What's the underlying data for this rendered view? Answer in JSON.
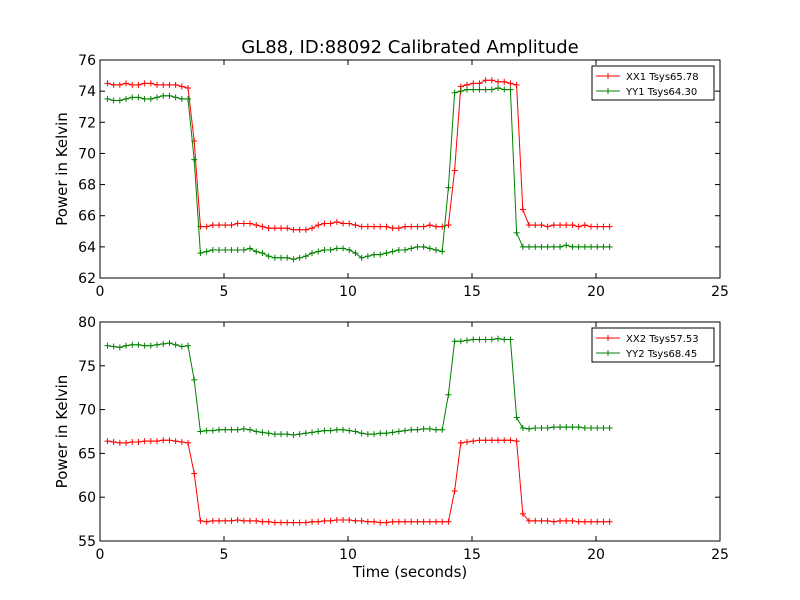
{
  "title": "GL88, ID:88092 Calibrated Amplitude",
  "chart_data": [
    {
      "type": "line",
      "ylabel": "Power in Kelvin",
      "xlabel": "",
      "xlim": [
        0,
        25
      ],
      "ylim": [
        62,
        76
      ],
      "xticks": [
        "0",
        "5",
        "10",
        "15",
        "20",
        "25"
      ],
      "yticks": [
        "62",
        "64",
        "66",
        "68",
        "70",
        "72",
        "74",
        "76"
      ],
      "legend_position": "top-right",
      "series": [
        {
          "name": "XX1 Tsys65.78",
          "color": "#ff0000",
          "x": [
            0.3,
            0.55,
            0.8,
            1.05,
            1.3,
            1.55,
            1.8,
            2.05,
            2.3,
            2.55,
            2.8,
            3.05,
            3.3,
            3.55,
            3.8,
            4.05,
            4.3,
            4.55,
            4.8,
            5.05,
            5.3,
            5.55,
            5.8,
            6.05,
            6.3,
            6.55,
            6.8,
            7.05,
            7.3,
            7.55,
            7.8,
            8.05,
            8.3,
            8.55,
            8.8,
            9.05,
            9.3,
            9.55,
            9.8,
            10.05,
            10.3,
            10.55,
            10.8,
            11.05,
            11.3,
            11.55,
            11.8,
            12.05,
            12.3,
            12.55,
            12.8,
            13.05,
            13.3,
            13.55,
            13.8,
            14.05,
            14.3,
            14.55,
            14.8,
            15.05,
            15.3,
            15.55,
            15.8,
            16.05,
            16.3,
            16.55,
            16.8,
            17.05,
            17.3,
            17.55,
            17.8,
            18.05,
            18.3,
            18.55,
            18.8,
            19.05,
            19.3,
            19.55,
            19.8,
            20.05,
            20.3,
            20.55
          ],
          "y": [
            74.5,
            74.4,
            74.4,
            74.5,
            74.4,
            74.4,
            74.5,
            74.5,
            74.4,
            74.4,
            74.4,
            74.4,
            74.3,
            74.2,
            70.8,
            65.3,
            65.3,
            65.4,
            65.4,
            65.4,
            65.4,
            65.5,
            65.5,
            65.5,
            65.4,
            65.3,
            65.2,
            65.2,
            65.2,
            65.2,
            65.1,
            65.1,
            65.1,
            65.2,
            65.4,
            65.5,
            65.5,
            65.6,
            65.5,
            65.5,
            65.4,
            65.3,
            65.3,
            65.3,
            65.3,
            65.3,
            65.2,
            65.2,
            65.3,
            65.3,
            65.3,
            65.3,
            65.4,
            65.3,
            65.3,
            65.4,
            68.9,
            74.3,
            74.4,
            74.5,
            74.5,
            74.7,
            74.7,
            74.6,
            74.6,
            74.5,
            74.4,
            66.4,
            65.4,
            65.4,
            65.4,
            65.3,
            65.4,
            65.4,
            65.4,
            65.4,
            65.3,
            65.4,
            65.3,
            65.3,
            65.3,
            65.3
          ]
        },
        {
          "name": "YY1 Tsys64.30",
          "color": "#008000",
          "x": [
            0.3,
            0.55,
            0.8,
            1.05,
            1.3,
            1.55,
            1.8,
            2.05,
            2.3,
            2.55,
            2.8,
            3.05,
            3.3,
            3.55,
            3.8,
            4.05,
            4.3,
            4.55,
            4.8,
            5.05,
            5.3,
            5.55,
            5.8,
            6.05,
            6.3,
            6.55,
            6.8,
            7.05,
            7.3,
            7.55,
            7.8,
            8.05,
            8.3,
            8.55,
            8.8,
            9.05,
            9.3,
            9.55,
            9.8,
            10.05,
            10.3,
            10.55,
            10.8,
            11.05,
            11.3,
            11.55,
            11.8,
            12.05,
            12.3,
            12.55,
            12.8,
            13.05,
            13.3,
            13.55,
            13.8,
            14.05,
            14.3,
            14.55,
            14.8,
            15.05,
            15.3,
            15.55,
            15.8,
            16.05,
            16.3,
            16.55,
            16.8,
            17.05,
            17.3,
            17.55,
            17.8,
            18.05,
            18.3,
            18.55,
            18.8,
            19.05,
            19.3,
            19.55,
            19.8,
            20.05,
            20.3,
            20.55
          ],
          "y": [
            73.5,
            73.4,
            73.4,
            73.5,
            73.6,
            73.6,
            73.5,
            73.5,
            73.6,
            73.7,
            73.7,
            73.6,
            73.5,
            73.5,
            69.6,
            63.6,
            63.7,
            63.8,
            63.8,
            63.8,
            63.8,
            63.8,
            63.8,
            63.9,
            63.7,
            63.6,
            63.4,
            63.3,
            63.3,
            63.3,
            63.2,
            63.3,
            63.4,
            63.6,
            63.7,
            63.8,
            63.8,
            63.9,
            63.9,
            63.8,
            63.6,
            63.3,
            63.4,
            63.5,
            63.5,
            63.6,
            63.7,
            63.8,
            63.8,
            63.9,
            64.0,
            64.0,
            63.9,
            63.8,
            63.7,
            67.8,
            73.9,
            74.0,
            74.1,
            74.1,
            74.1,
            74.1,
            74.1,
            74.2,
            74.1,
            74.1,
            64.9,
            64.0,
            64.0,
            64.0,
            64.0,
            64.0,
            64.0,
            64.0,
            64.1,
            64.0,
            64.0,
            64.0,
            64.0,
            64.0,
            64.0,
            64.0
          ]
        }
      ]
    },
    {
      "type": "line",
      "ylabel": "Power in Kelvin",
      "xlabel": "Time (seconds)",
      "xlim": [
        0,
        25
      ],
      "ylim": [
        55,
        80
      ],
      "xticks": [
        "0",
        "5",
        "10",
        "15",
        "20",
        "25"
      ],
      "yticks": [
        "55",
        "60",
        "65",
        "70",
        "75",
        "80"
      ],
      "legend_position": "top-right",
      "series": [
        {
          "name": "XX2 Tsys57.53",
          "color": "#ff0000",
          "x": [
            0.3,
            0.55,
            0.8,
            1.05,
            1.3,
            1.55,
            1.8,
            2.05,
            2.3,
            2.55,
            2.8,
            3.05,
            3.3,
            3.55,
            3.8,
            4.05,
            4.3,
            4.55,
            4.8,
            5.05,
            5.3,
            5.55,
            5.8,
            6.05,
            6.3,
            6.55,
            6.8,
            7.05,
            7.3,
            7.55,
            7.8,
            8.05,
            8.3,
            8.55,
            8.8,
            9.05,
            9.3,
            9.55,
            9.8,
            10.05,
            10.3,
            10.55,
            10.8,
            11.05,
            11.3,
            11.55,
            11.8,
            12.05,
            12.3,
            12.55,
            12.8,
            13.05,
            13.3,
            13.55,
            13.8,
            14.05,
            14.3,
            14.55,
            14.8,
            15.05,
            15.3,
            15.55,
            15.8,
            16.05,
            16.3,
            16.55,
            16.8,
            17.05,
            17.3,
            17.55,
            17.8,
            18.05,
            18.3,
            18.55,
            18.8,
            19.05,
            19.3,
            19.55,
            19.8,
            20.05,
            20.3,
            20.55
          ],
          "y": [
            66.4,
            66.3,
            66.2,
            66.2,
            66.3,
            66.3,
            66.4,
            66.4,
            66.4,
            66.5,
            66.5,
            66.4,
            66.3,
            66.2,
            62.7,
            57.3,
            57.2,
            57.3,
            57.3,
            57.3,
            57.3,
            57.4,
            57.3,
            57.3,
            57.3,
            57.2,
            57.2,
            57.1,
            57.1,
            57.1,
            57.1,
            57.1,
            57.1,
            57.2,
            57.2,
            57.3,
            57.3,
            57.4,
            57.4,
            57.4,
            57.3,
            57.3,
            57.2,
            57.2,
            57.1,
            57.1,
            57.2,
            57.2,
            57.2,
            57.2,
            57.2,
            57.2,
            57.2,
            57.2,
            57.2,
            57.2,
            60.7,
            66.2,
            66.3,
            66.4,
            66.5,
            66.5,
            66.5,
            66.5,
            66.5,
            66.5,
            66.4,
            58.1,
            57.3,
            57.3,
            57.3,
            57.3,
            57.2,
            57.3,
            57.3,
            57.3,
            57.2,
            57.2,
            57.2,
            57.2,
            57.2,
            57.2
          ]
        },
        {
          "name": "YY2 Tsys68.45",
          "color": "#008000",
          "x": [
            0.3,
            0.55,
            0.8,
            1.05,
            1.3,
            1.55,
            1.8,
            2.05,
            2.3,
            2.55,
            2.8,
            3.05,
            3.3,
            3.55,
            3.8,
            4.05,
            4.3,
            4.55,
            4.8,
            5.05,
            5.3,
            5.55,
            5.8,
            6.05,
            6.3,
            6.55,
            6.8,
            7.05,
            7.3,
            7.55,
            7.8,
            8.05,
            8.3,
            8.55,
            8.8,
            9.05,
            9.3,
            9.55,
            9.8,
            10.05,
            10.3,
            10.55,
            10.8,
            11.05,
            11.3,
            11.55,
            11.8,
            12.05,
            12.3,
            12.55,
            12.8,
            13.05,
            13.3,
            13.55,
            13.8,
            14.05,
            14.3,
            14.55,
            14.8,
            15.05,
            15.3,
            15.55,
            15.8,
            16.05,
            16.3,
            16.55,
            16.8,
            17.05,
            17.3,
            17.55,
            17.8,
            18.05,
            18.3,
            18.55,
            18.8,
            19.05,
            19.3,
            19.55,
            19.8,
            20.05,
            20.3,
            20.55
          ],
          "y": [
            77.3,
            77.2,
            77.1,
            77.3,
            77.4,
            77.4,
            77.3,
            77.3,
            77.4,
            77.5,
            77.6,
            77.4,
            77.2,
            77.3,
            73.4,
            67.5,
            67.6,
            67.6,
            67.7,
            67.7,
            67.7,
            67.7,
            67.8,
            67.7,
            67.5,
            67.4,
            67.3,
            67.2,
            67.2,
            67.2,
            67.1,
            67.2,
            67.3,
            67.4,
            67.5,
            67.6,
            67.6,
            67.7,
            67.7,
            67.6,
            67.5,
            67.3,
            67.2,
            67.2,
            67.3,
            67.3,
            67.4,
            67.5,
            67.6,
            67.7,
            67.7,
            67.8,
            67.8,
            67.7,
            67.7,
            71.7,
            77.8,
            77.8,
            77.9,
            78.0,
            78.0,
            78.0,
            78.0,
            78.1,
            78.0,
            78.0,
            69.1,
            67.9,
            67.8,
            67.9,
            67.9,
            67.9,
            68.0,
            68.0,
            68.0,
            68.0,
            68.0,
            67.9,
            67.9,
            67.9,
            67.9,
            67.9
          ]
        }
      ]
    }
  ]
}
